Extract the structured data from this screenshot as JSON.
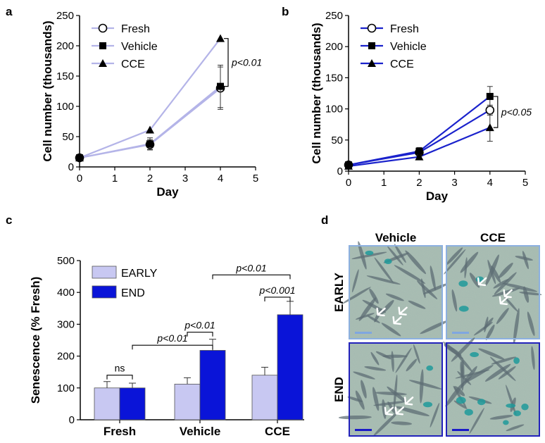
{
  "colors": {
    "light": "#c8c8f2",
    "light_line": "#b4b4e8",
    "dark": "#0a14d8",
    "dark_line": "#1a22cc",
    "micro_early_border": "#8cb0e0",
    "micro_end_border": "#2222bb",
    "micro_bg": "#a9bfb4"
  },
  "chart_data": [
    {
      "id": "a",
      "type": "line",
      "panel_label": "a",
      "xlabel": "Day",
      "ylabel": "Cell number (thousands)",
      "xlim": [
        0,
        5
      ],
      "ylim": [
        0,
        250
      ],
      "xticks": [
        "0",
        "1",
        "2",
        "3",
        "4",
        "5"
      ],
      "yticks": [
        "0",
        "50",
        "100",
        "150",
        "200",
        "250"
      ],
      "x": [
        0,
        2,
        4
      ],
      "series": [
        {
          "name": "Fresh",
          "marker": "open-circle",
          "values": [
            15,
            37,
            130
          ],
          "err": [
            3,
            8,
            35
          ]
        },
        {
          "name": "Vehicle",
          "marker": "square",
          "values": [
            15,
            38,
            133
          ],
          "err": [
            3,
            10,
            35
          ]
        },
        {
          "name": "CCE",
          "marker": "triangle",
          "values": [
            15,
            61,
            212
          ],
          "err": [
            3,
            3,
            3
          ]
        }
      ],
      "annotation": "p<0.01"
    },
    {
      "id": "b",
      "type": "line",
      "panel_label": "b",
      "xlabel": "Day",
      "ylabel": "Cell number (thousands)",
      "xlim": [
        0,
        5
      ],
      "ylim": [
        0,
        250
      ],
      "xticks": [
        "0",
        "1",
        "2",
        "3",
        "4",
        "5"
      ],
      "yticks": [
        "0",
        "50",
        "100",
        "150",
        "200",
        "250"
      ],
      "x": [
        0,
        2,
        4
      ],
      "series": [
        {
          "name": "Fresh",
          "marker": "open-circle",
          "values": [
            10,
            30,
            98
          ],
          "err": [
            2,
            6,
            8
          ]
        },
        {
          "name": "Vehicle",
          "marker": "square",
          "values": [
            10,
            32,
            120
          ],
          "err": [
            2,
            6,
            16
          ]
        },
        {
          "name": "CCE",
          "marker": "triangle",
          "values": [
            8,
            23,
            70
          ],
          "err": [
            2,
            4,
            22
          ]
        }
      ],
      "annotation": "p<0.05"
    },
    {
      "id": "c",
      "type": "bar",
      "panel_label": "c",
      "ylabel": "Senescence (% Fresh)",
      "ylim": [
        0,
        500
      ],
      "yticks": [
        "0",
        "100",
        "200",
        "300",
        "400",
        "500"
      ],
      "categories": [
        "Fresh",
        "Vehicle",
        "CCE"
      ],
      "series": [
        {
          "name": "EARLY",
          "values": [
            100,
            112,
            140
          ],
          "err": [
            20,
            20,
            25
          ]
        },
        {
          "name": "END",
          "values": [
            100,
            218,
            330
          ],
          "err": [
            15,
            35,
            42
          ]
        }
      ],
      "annotations": [
        "ns",
        "p<0.01",
        "p<0.01",
        "p<0.001",
        "p<0.01"
      ]
    }
  ],
  "panel_d": {
    "label": "d",
    "col_labels": [
      "Vehicle",
      "CCE"
    ],
    "row_labels": [
      "EARLY",
      "END"
    ]
  }
}
